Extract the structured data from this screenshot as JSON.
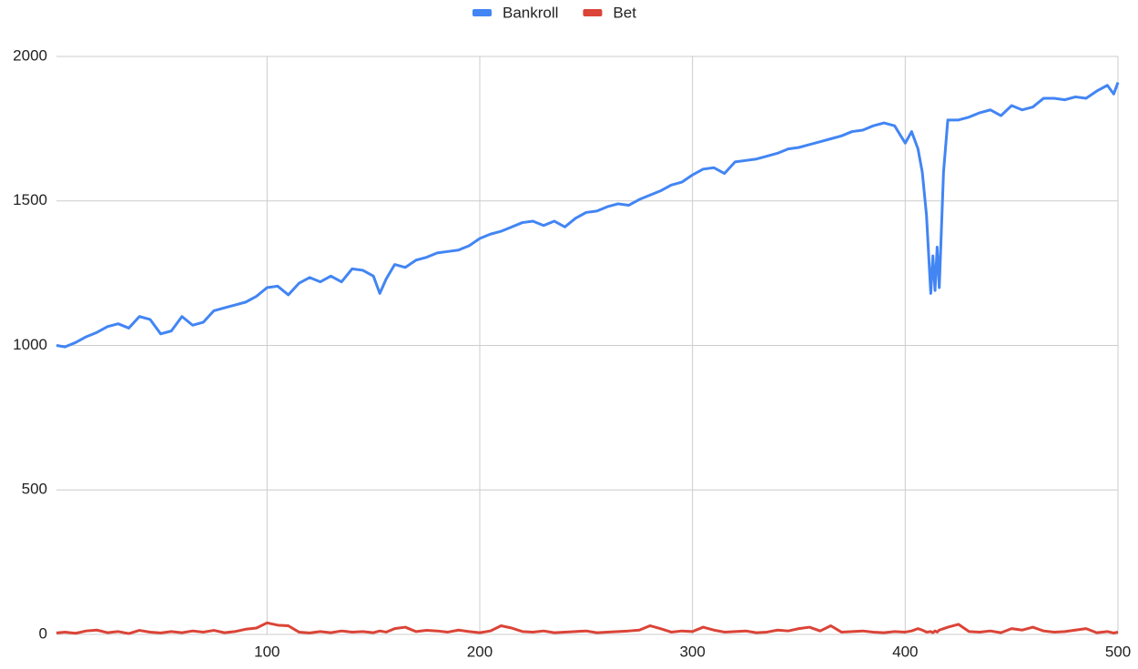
{
  "chart_data": {
    "type": "line",
    "x": [
      1,
      5,
      10,
      15,
      20,
      25,
      30,
      35,
      40,
      45,
      50,
      55,
      60,
      65,
      70,
      75,
      80,
      85,
      90,
      95,
      100,
      105,
      110,
      115,
      120,
      125,
      130,
      135,
      140,
      145,
      150,
      153,
      156,
      160,
      165,
      170,
      175,
      180,
      185,
      190,
      195,
      200,
      205,
      210,
      215,
      220,
      225,
      230,
      235,
      240,
      245,
      250,
      255,
      260,
      265,
      270,
      275,
      280,
      285,
      290,
      295,
      300,
      305,
      310,
      315,
      320,
      325,
      330,
      335,
      340,
      345,
      350,
      355,
      360,
      365,
      370,
      375,
      380,
      385,
      390,
      395,
      400,
      403,
      406,
      408,
      410,
      412,
      413,
      414,
      415,
      416,
      418,
      420,
      425,
      430,
      435,
      440,
      445,
      450,
      455,
      460,
      465,
      470,
      475,
      480,
      485,
      490,
      495,
      498,
      500
    ],
    "series": [
      {
        "name": "Bankroll",
        "color": "#4285f4",
        "values": [
          1000,
          995,
          1010,
          1030,
          1045,
          1065,
          1075,
          1060,
          1100,
          1090,
          1040,
          1050,
          1100,
          1070,
          1080,
          1120,
          1130,
          1140,
          1150,
          1170,
          1200,
          1205,
          1175,
          1215,
          1235,
          1220,
          1240,
          1220,
          1265,
          1260,
          1240,
          1180,
          1230,
          1280,
          1270,
          1295,
          1305,
          1320,
          1325,
          1330,
          1345,
          1370,
          1385,
          1395,
          1410,
          1425,
          1430,
          1415,
          1430,
          1410,
          1440,
          1460,
          1465,
          1480,
          1490,
          1485,
          1505,
          1520,
          1535,
          1555,
          1565,
          1590,
          1610,
          1615,
          1595,
          1635,
          1640,
          1645,
          1655,
          1665,
          1680,
          1685,
          1695,
          1705,
          1715,
          1725,
          1740,
          1745,
          1760,
          1770,
          1760,
          1700,
          1740,
          1680,
          1600,
          1450,
          1180,
          1310,
          1190,
          1340,
          1200,
          1600,
          1780,
          1780,
          1790,
          1805,
          1815,
          1795,
          1830,
          1815,
          1825,
          1855,
          1855,
          1850,
          1860,
          1855,
          1880,
          1900,
          1870,
          1910
        ]
      },
      {
        "name": "Bet",
        "color": "#db4437",
        "values": [
          5,
          8,
          4,
          12,
          15,
          6,
          10,
          3,
          14,
          8,
          5,
          10,
          6,
          12,
          8,
          14,
          6,
          10,
          18,
          22,
          40,
          32,
          30,
          8,
          5,
          10,
          6,
          12,
          8,
          10,
          6,
          12,
          8,
          20,
          25,
          10,
          14,
          12,
          8,
          15,
          10,
          6,
          12,
          30,
          22,
          10,
          8,
          12,
          6,
          8,
          10,
          12,
          6,
          8,
          10,
          12,
          15,
          30,
          20,
          8,
          12,
          10,
          25,
          15,
          8,
          10,
          12,
          6,
          8,
          15,
          12,
          20,
          25,
          12,
          30,
          8,
          10,
          12,
          8,
          6,
          10,
          8,
          12,
          20,
          15,
          8,
          10,
          6,
          12,
          8,
          15,
          20,
          25,
          35,
          10,
          8,
          12,
          6,
          20,
          15,
          25,
          12,
          8,
          10,
          15,
          20,
          6,
          10,
          5,
          8
        ]
      }
    ],
    "xlim": [
      1,
      500
    ],
    "xticks": [
      100,
      200,
      300,
      400,
      500
    ],
    "ylim": [
      0,
      2000
    ],
    "yticks": [
      0,
      500,
      1000,
      1500,
      2000
    ],
    "grid": true,
    "legend": "top"
  }
}
